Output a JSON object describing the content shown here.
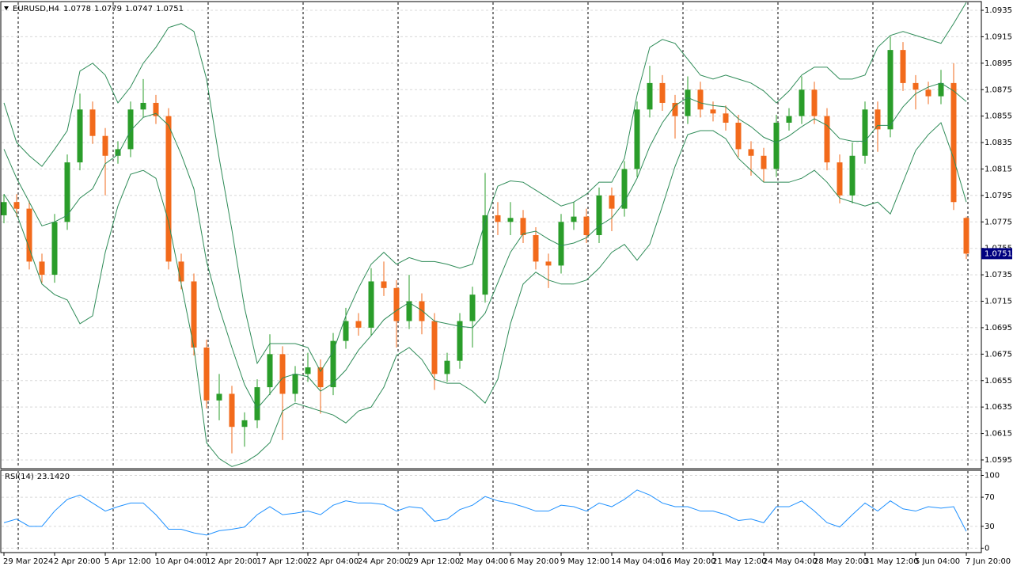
{
  "chart_data": [
    {
      "type": "candlestick",
      "title": "EURUSD,H4",
      "categories": [
        "29 Mar 2024",
        null,
        null,
        null,
        "2 Apr 20:00",
        null,
        null,
        null,
        "5 Apr 12:00",
        null,
        null,
        null,
        "10 Apr 04:00",
        null,
        null,
        null,
        "12 Apr 20:00",
        null,
        null,
        null,
        "17 Apr 12:00",
        null,
        null,
        null,
        "22 Apr 04:00",
        null,
        null,
        null,
        "24 Apr 20:00",
        null,
        null,
        null,
        "29 Apr 12:00",
        null,
        null,
        null,
        "2 May 04:00",
        null,
        null,
        null,
        "6 May 20:00",
        null,
        null,
        null,
        "9 May 12:00",
        null,
        null,
        null,
        "14 May 04:00",
        null,
        null,
        null,
        "16 May 20:00",
        null,
        null,
        null,
        "21 May 12:00",
        null,
        null,
        null,
        "24 May 04:00",
        null,
        null,
        null,
        "28 May 20:00",
        null,
        null,
        null,
        "31 May 12:00",
        null,
        null,
        null,
        "5 Jun 04:00",
        null,
        null,
        null,
        "7 Jun 20:00"
      ],
      "open": [
        1.078,
        1.079,
        1.0785,
        1.0745,
        1.0735,
        1.0775,
        1.082,
        1.086,
        1.084,
        1.0825,
        1.083,
        1.086,
        1.0865,
        1.0855,
        1.0745,
        1.073,
        1.068,
        1.064,
        1.0645,
        1.062,
        1.0625,
        1.065,
        1.0675,
        1.0645,
        1.066,
        1.0665,
        1.065,
        1.0685,
        1.07,
        1.0695,
        1.073,
        1.0725,
        1.07,
        1.0715,
        1.07,
        1.066,
        1.067,
        1.07,
        1.072,
        1.078,
        1.0775,
        1.0778,
        1.0765,
        1.0745,
        1.0742,
        1.0775,
        1.0779,
        1.0765,
        1.0795,
        1.0785,
        1.0815,
        1.086,
        1.088,
        1.0865,
        1.0855,
        1.0875,
        1.086,
        1.0857,
        1.085,
        1.083,
        1.0825,
        1.0815,
        1.085,
        1.0855,
        1.0875,
        1.0855,
        1.082,
        1.0795,
        1.0825,
        1.086,
        1.0845,
        1.0905,
        1.088,
        1.0875,
        1.087,
        1.088,
        1.0778
      ],
      "high": [
        1.0796,
        1.0796,
        1.0791,
        1.0751,
        1.0781,
        1.0826,
        1.0872,
        1.0866,
        1.0846,
        1.0836,
        1.0866,
        1.0883,
        1.0871,
        1.0861,
        1.0751,
        1.0736,
        1.0686,
        1.066,
        1.0651,
        1.0631,
        1.0656,
        1.069,
        1.0681,
        1.0666,
        1.0676,
        1.0671,
        1.0691,
        1.071,
        1.0706,
        1.074,
        1.0745,
        1.0731,
        1.0735,
        1.0721,
        1.0706,
        1.0676,
        1.0706,
        1.0726,
        1.0812,
        1.079,
        1.079,
        1.0784,
        1.0771,
        1.0751,
        1.0781,
        1.079,
        1.0785,
        1.0801,
        1.0801,
        1.0821,
        1.0866,
        1.0893,
        1.0886,
        1.0871,
        1.0885,
        1.0881,
        1.0866,
        1.0863,
        1.0856,
        1.0836,
        1.0831,
        1.0856,
        1.0861,
        1.0885,
        1.0881,
        1.0861,
        1.0826,
        1.0835,
        1.0866,
        1.0866,
        1.0915,
        1.0911,
        1.0886,
        1.0881,
        1.089,
        1.0895,
        1.0779
      ],
      "low": [
        1.0774,
        1.0779,
        1.0739,
        1.0729,
        1.0729,
        1.0769,
        1.0814,
        1.0834,
        1.0795,
        1.0819,
        1.0824,
        1.0854,
        1.0849,
        1.0739,
        1.0724,
        1.0674,
        1.0634,
        1.0625,
        1.06,
        1.0605,
        1.0619,
        1.0644,
        1.061,
        1.0639,
        1.0654,
        1.063,
        1.0644,
        1.0679,
        1.0689,
        1.0689,
        1.0719,
        1.068,
        1.0694,
        1.069,
        1.0648,
        1.0654,
        1.0664,
        1.068,
        1.0714,
        1.0765,
        1.0765,
        1.0759,
        1.0739,
        1.0725,
        1.0736,
        1.0769,
        1.0759,
        1.0759,
        1.0768,
        1.0779,
        1.0809,
        1.0854,
        1.0859,
        1.0838,
        1.0849,
        1.0854,
        1.0851,
        1.0844,
        1.0824,
        1.081,
        1.0805,
        1.0809,
        1.0844,
        1.0849,
        1.0849,
        1.0814,
        1.0789,
        1.0789,
        1.0819,
        1.0828,
        1.0839,
        1.0874,
        1.086,
        1.0864,
        1.0864,
        1.0784,
        1.0747
      ],
      "close": [
        1.079,
        1.0785,
        1.0745,
        1.0735,
        1.0775,
        1.082,
        1.086,
        1.084,
        1.0825,
        1.083,
        1.086,
        1.0865,
        1.0855,
        1.0745,
        1.073,
        1.068,
        1.064,
        1.0645,
        1.062,
        1.0625,
        1.065,
        1.0675,
        1.0645,
        1.066,
        1.0665,
        1.065,
        1.0685,
        1.07,
        1.0695,
        1.073,
        1.0725,
        1.07,
        1.0715,
        1.07,
        1.066,
        1.067,
        1.07,
        1.072,
        1.078,
        1.0775,
        1.0778,
        1.0765,
        1.0745,
        1.0742,
        1.0775,
        1.0779,
        1.0765,
        1.0795,
        1.0785,
        1.0815,
        1.086,
        1.088,
        1.0865,
        1.0855,
        1.0875,
        1.086,
        1.0857,
        1.085,
        1.083,
        1.0825,
        1.0815,
        1.085,
        1.0855,
        1.0875,
        1.0855,
        1.082,
        1.0795,
        1.0825,
        1.086,
        1.0845,
        1.0905,
        1.088,
        1.0875,
        1.087,
        1.088,
        1.079,
        1.0751
      ],
      "up_color": "#2a9d2a",
      "down_color": "#f26a1b",
      "overlays": [
        {
          "color": "#2e8b57",
          "values": [
            1.0865,
            1.0835,
            1.0825,
            1.0817,
            1.083,
            1.0844,
            1.0889,
            1.0895,
            1.0886,
            1.0865,
            1.0877,
            1.0895,
            1.0907,
            1.0922,
            1.0925,
            1.0919,
            1.0883,
            1.0823,
            1.0769,
            1.071,
            1.0668,
            1.0683,
            1.0683,
            1.0683,
            1.068,
            1.0662,
            1.0677,
            1.0704,
            1.0725,
            1.0743,
            1.0752,
            1.0743,
            1.0748,
            1.0745,
            1.0745,
            1.0743,
            1.074,
            1.0743,
            1.0775,
            1.0802,
            1.0806,
            1.0805,
            1.0799,
            1.0793,
            1.0787,
            1.079,
            1.0796,
            1.0805,
            1.0805,
            1.0823,
            1.0871,
            1.0907,
            1.0913,
            1.091,
            1.0898,
            1.0886,
            1.0883,
            1.0886,
            1.0883,
            1.088,
            1.0874,
            1.0865,
            1.0874,
            1.0886,
            1.0892,
            1.0892,
            1.0883,
            1.0883,
            1.0886,
            1.0907,
            1.0916,
            1.0919,
            1.0916,
            1.0913,
            1.091,
            1.0925,
            1.0941
          ]
        },
        {
          "color": "#2e8b57",
          "values": [
            1.083,
            1.0808,
            1.079,
            1.0772,
            1.0775,
            1.078,
            1.0793,
            1.08,
            1.0819,
            1.0826,
            1.0844,
            1.0854,
            1.0857,
            1.0848,
            1.0826,
            1.08,
            1.0745,
            1.071,
            1.068,
            1.0652,
            1.0634,
            1.0645,
            1.0657,
            1.066,
            1.0658,
            1.0647,
            1.0653,
            1.0663,
            1.0678,
            1.0689,
            1.0701,
            1.0708,
            1.0714,
            1.0708,
            1.07,
            1.0698,
            1.0696,
            1.0695,
            1.0706,
            1.0729,
            1.0752,
            1.0766,
            1.0768,
            1.0762,
            1.0757,
            1.0759,
            1.0763,
            1.0772,
            1.0778,
            1.079,
            1.0808,
            1.0832,
            1.085,
            1.0863,
            1.0869,
            1.0865,
            1.0863,
            1.0862,
            1.0853,
            1.0847,
            1.0839,
            1.0835,
            1.084,
            1.0847,
            1.0853,
            1.0848,
            1.0838,
            1.0836,
            1.0836,
            1.0848,
            1.0848,
            1.0862,
            1.0872,
            1.0877,
            1.088,
            1.0874,
            1.0866
          ]
        },
        {
          "color": "#2e8b57",
          "values": [
            1.0796,
            1.0781,
            1.0755,
            1.0728,
            1.072,
            1.0716,
            1.0698,
            1.0704,
            1.0752,
            1.0787,
            1.0811,
            1.0814,
            1.0808,
            1.0775,
            1.0728,
            1.068,
            1.0608,
            1.0596,
            1.059,
            1.0593,
            1.0599,
            1.0608,
            1.0632,
            1.0638,
            1.0635,
            1.0632,
            1.0629,
            1.0623,
            1.0632,
            1.0635,
            1.065,
            1.0674,
            1.068,
            1.0671,
            1.0656,
            1.0653,
            1.0653,
            1.0647,
            1.0638,
            1.0656,
            1.0698,
            1.0728,
            1.0737,
            1.0731,
            1.0728,
            1.0728,
            1.0731,
            1.074,
            1.0752,
            1.0758,
            1.0746,
            1.0758,
            1.0787,
            1.0817,
            1.0841,
            1.0844,
            1.0844,
            1.0838,
            1.0823,
            1.0814,
            1.0805,
            1.0805,
            1.0805,
            1.0808,
            1.0814,
            1.0805,
            1.0793,
            1.079,
            1.0787,
            1.079,
            1.0781,
            1.0805,
            1.0829,
            1.0841,
            1.085,
            1.0823,
            1.079
          ]
        }
      ],
      "ylim": [
        1.0589,
        1.0941
      ],
      "yticks": [
        1.0595,
        1.0615,
        1.0635,
        1.0655,
        1.0675,
        1.0695,
        1.0715,
        1.0735,
        1.0755,
        1.0775,
        1.0795,
        1.0815,
        1.0835,
        1.0855,
        1.0875,
        1.0895,
        1.0915,
        1.0935
      ],
      "grid": true
    },
    {
      "type": "line",
      "title": "RSI(14)",
      "series": [
        {
          "color": "#1e90ff",
          "values": [
            35,
            40,
            30,
            30,
            51,
            67,
            73,
            62,
            51,
            57,
            62,
            62,
            46,
            26,
            26,
            21,
            18,
            24,
            26,
            29,
            46,
            57,
            46,
            48,
            51,
            46,
            59,
            65,
            62,
            62,
            60,
            51,
            57,
            55,
            37,
            40,
            53,
            59,
            71,
            65,
            62,
            57,
            51,
            51,
            59,
            57,
            51,
            62,
            57,
            67,
            80,
            73,
            62,
            57,
            57,
            51,
            51,
            46,
            38,
            40,
            35,
            57,
            57,
            65,
            51,
            35,
            29,
            46,
            62,
            51,
            65,
            54,
            51,
            57,
            55,
            57,
            23.142
          ],
          "value_labels": [
            null,
            null,
            null,
            null,
            null,
            null,
            null,
            null,
            null,
            null,
            null,
            null,
            null,
            null,
            null,
            null,
            null,
            null,
            null,
            null,
            null,
            null,
            null,
            null,
            null,
            null,
            null,
            null,
            null,
            null,
            null,
            null,
            null,
            null,
            null,
            null,
            null,
            null,
            null,
            null,
            null,
            null,
            null,
            null,
            null,
            null,
            null,
            null,
            null,
            null,
            null,
            null,
            null,
            null,
            null,
            null,
            null,
            null,
            null,
            null,
            null,
            null,
            null,
            null,
            null,
            null,
            null,
            null,
            null,
            null,
            null,
            null,
            null,
            null,
            null,
            null,
            "23.1420"
          ]
        }
      ],
      "ylim": [
        -5,
        106
      ],
      "yticks": [
        0,
        30,
        70,
        100
      ],
      "grid": true
    }
  ]
}
